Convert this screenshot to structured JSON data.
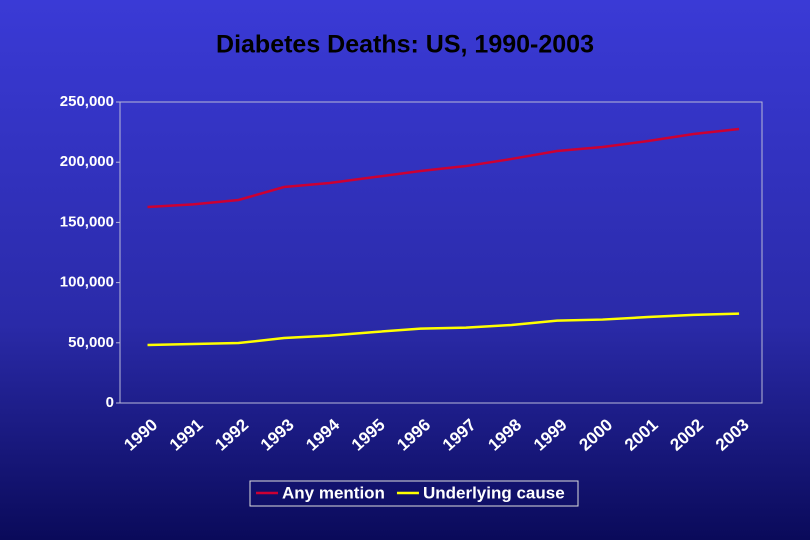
{
  "chart_data": {
    "type": "line",
    "title": "Diabetes Deaths: US, 1990-2003",
    "categories": [
      "1990",
      "1991",
      "1992",
      "1993",
      "1994",
      "1995",
      "1996",
      "1997",
      "1998",
      "1999",
      "2000",
      "2001",
      "2002",
      "2003"
    ],
    "series": [
      {
        "name": "Any mention",
        "color": "#cc0033",
        "values": [
          162800,
          165000,
          168600,
          179400,
          182700,
          187700,
          192700,
          196800,
          202700,
          209300,
          212600,
          217600,
          223400,
          227600
        ]
      },
      {
        "name": "Underlying cause",
        "color": "#ffff00",
        "values": [
          48200,
          49000,
          49800,
          54000,
          56000,
          59000,
          61800,
          62600,
          64800,
          68400,
          69300,
          71400,
          73200,
          74200
        ]
      }
    ],
    "ylim": [
      0,
      250000
    ],
    "yticks": [
      0,
      {
        "value": 50000,
        "label": "50,000"
      },
      {
        "value": 100000,
        "label": "100,000"
      },
      {
        "value": 150000,
        "label": "150,000"
      },
      {
        "value": 200000,
        "label": "200,000"
      },
      {
        "value": 250000,
        "label": "250,000"
      }
    ],
    "legend": "bottom"
  }
}
